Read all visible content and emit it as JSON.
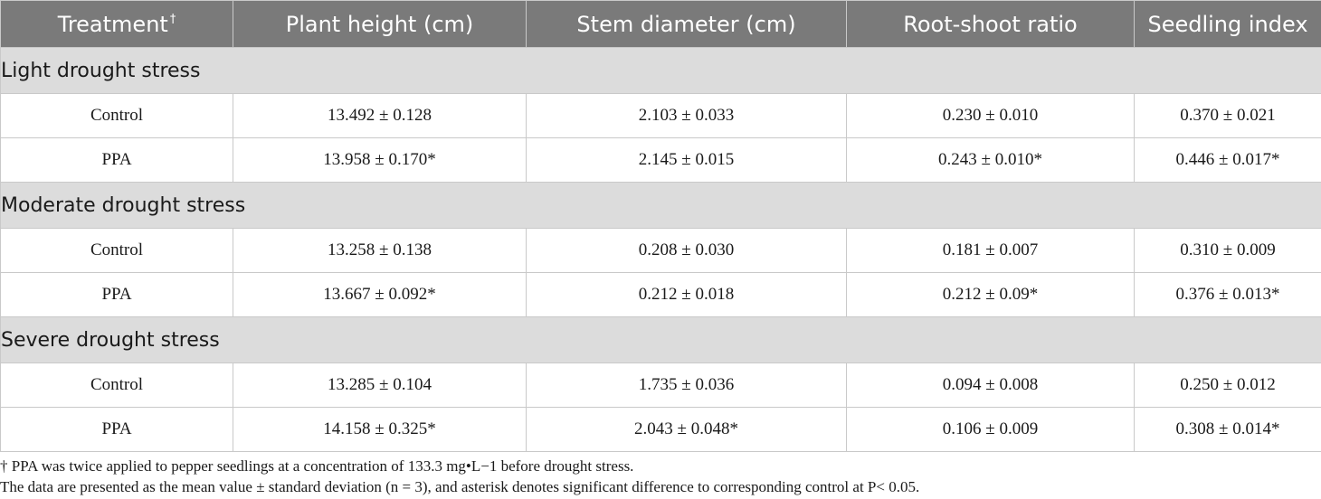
{
  "table": {
    "columns": [
      {
        "label": "Treatment",
        "mark": "†"
      },
      {
        "label": "Plant height (cm)"
      },
      {
        "label": "Stem diameter (cm)"
      },
      {
        "label": "Root-shoot ratio"
      },
      {
        "label": "Seedling index"
      }
    ],
    "groups": [
      {
        "title": "Light drought stress",
        "rows": [
          {
            "cells": [
              "Control",
              "13.492 ± 0.128",
              "2.103 ± 0.033",
              "0.230 ± 0.010",
              "0.370 ± 0.021"
            ]
          },
          {
            "cells": [
              "PPA",
              "13.958 ± 0.170*",
              "2.145 ± 0.015",
              "0.243 ± 0.010*",
              "0.446 ± 0.017*"
            ]
          }
        ]
      },
      {
        "title": "Moderate drought stress",
        "rows": [
          {
            "cells": [
              "Control",
              "13.258 ± 0.138",
              "0.208 ± 0.030",
              "0.181 ± 0.007",
              "0.310 ± 0.009"
            ]
          },
          {
            "cells": [
              "PPA",
              "13.667 ± 0.092*",
              "0.212 ± 0.018",
              "0.212 ± 0.09*",
              "0.376 ± 0.013*"
            ]
          }
        ]
      },
      {
        "title": "Severe drought stress",
        "rows": [
          {
            "cells": [
              "Control",
              "13.285 ± 0.104",
              "1.735 ± 0.036",
              "0.094 ± 0.008",
              "0.250 ± 0.012"
            ]
          },
          {
            "cells": [
              "PPA",
              "14.158 ± 0.325*",
              "2.043 ± 0.048*",
              "0.106 ± 0.009",
              "0.308 ± 0.014*"
            ]
          }
        ]
      }
    ]
  },
  "footnotes": [
    "† PPA was twice applied to pepper seedlings at a concentration of 133.3 mg•L−1 before drought stress.",
    "The data are presented as the mean value ± standard deviation (n = 3), and asterisk denotes significant difference to corresponding control at P< 0.05."
  ]
}
